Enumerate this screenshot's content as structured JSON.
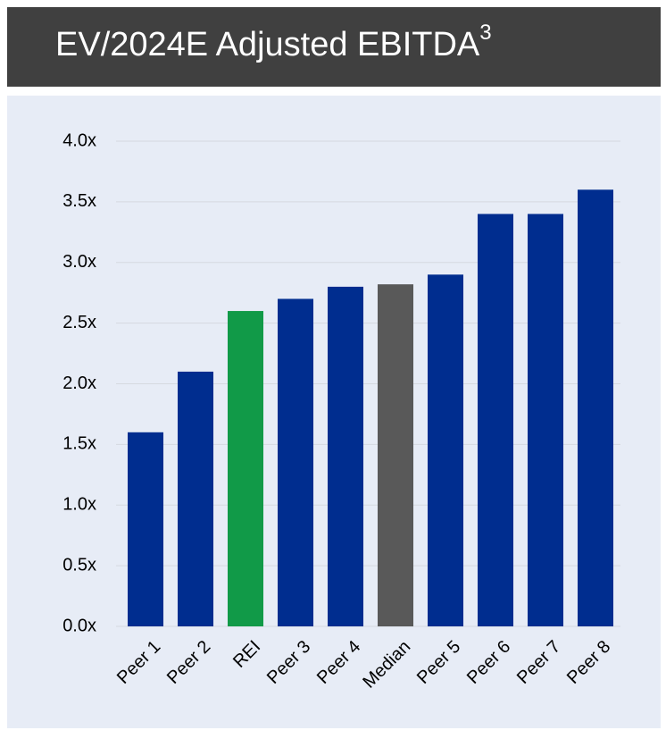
{
  "chart_data": {
    "type": "bar",
    "title": "EV/2024E Adjusted EBITDA",
    "title_note": "3",
    "categories": [
      "Peer 1",
      "Peer 2",
      "REI",
      "Peer 3",
      "Peer 4",
      "Median",
      "Peer 5",
      "Peer 6",
      "Peer 7",
      "Peer 8"
    ],
    "values": [
      1.6,
      2.1,
      2.6,
      2.7,
      2.8,
      2.82,
      2.9,
      3.4,
      3.4,
      3.6
    ],
    "colors": [
      "#002d8f",
      "#002d8f",
      "#119a48",
      "#002d8f",
      "#002d8f",
      "#595959",
      "#002d8f",
      "#002d8f",
      "#002d8f",
      "#002d8f"
    ],
    "ylim": [
      0,
      4
    ],
    "yticks": [
      {
        "value": 0,
        "label": "0.0x"
      },
      {
        "value": 0.5,
        "label": "0.5x"
      },
      {
        "value": 1,
        "label": "1.0x"
      },
      {
        "value": 1.5,
        "label": "1.5x"
      },
      {
        "value": 2,
        "label": "2.0x"
      },
      {
        "value": 2.5,
        "label": "2.5x"
      },
      {
        "value": 3,
        "label": "3.0x"
      },
      {
        "value": 3.5,
        "label": "3.5x"
      },
      {
        "value": 4,
        "label": "4.0x"
      }
    ],
    "grid": true
  }
}
